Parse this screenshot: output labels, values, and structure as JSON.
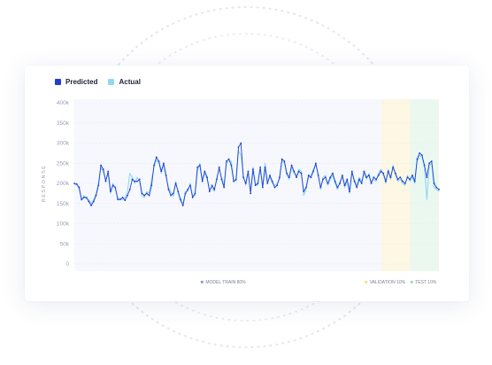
{
  "legend": {
    "predicted_label": "Predicted",
    "actual_label": "Actual"
  },
  "colors": {
    "predicted": "#1f3fd4",
    "actual": "#8fd8f0",
    "train_bg": "#f6f8fd",
    "validation_bg": "#fdf7e3",
    "test_bg": "#ebf8ef",
    "grid": "#e6e9f2"
  },
  "zones": [
    {
      "label": "MODEL TRAIN 80%",
      "start": 0,
      "end": 128,
      "dot": "#8aa0e6"
    },
    {
      "label": "VALIDATION 10%",
      "start": 128,
      "end": 140,
      "dot": "#f3dd9a"
    },
    {
      "label": "TEST 10%",
      "start": 140,
      "end": 152,
      "dot": "#9fe0b5"
    }
  ],
  "chart_data": {
    "type": "line",
    "ylabel": "RESPONSE",
    "ylim": [
      0,
      400000
    ],
    "y_ticks": [
      0,
      50000,
      100000,
      150000,
      200000,
      250000,
      300000,
      350000,
      400000
    ],
    "y_tick_labels": [
      "0",
      "50k",
      "100k",
      "150k",
      "200k",
      "250k",
      "300k",
      "350k",
      "400k"
    ],
    "legend_position": "top-left",
    "grid": true,
    "series": [
      {
        "name": "Predicted",
        "values": [
          200000,
          198000,
          190000,
          160000,
          165000,
          165000,
          155000,
          145000,
          155000,
          170000,
          195000,
          245000,
          235000,
          205000,
          230000,
          180000,
          195000,
          190000,
          160000,
          160000,
          165000,
          158000,
          170000,
          185000,
          210000,
          205000,
          205000,
          210000,
          175000,
          170000,
          175000,
          170000,
          195000,
          245000,
          265000,
          255000,
          230000,
          250000,
          220000,
          185000,
          170000,
          175000,
          200000,
          180000,
          160000,
          145000,
          175000,
          185000,
          195000,
          165000,
          175000,
          240000,
          245000,
          205000,
          230000,
          215000,
          180000,
          195000,
          185000,
          210000,
          240000,
          210000,
          190000,
          255000,
          260000,
          245000,
          205000,
          210000,
          290000,
          300000,
          215000,
          200000,
          230000,
          175000,
          235000,
          195000,
          200000,
          240000,
          190000,
          240000,
          200000,
          220000,
          205000,
          190000,
          195000,
          215000,
          260000,
          255000,
          225000,
          215000,
          245000,
          230000,
          215000,
          230000,
          225000,
          180000,
          190000,
          220000,
          215000,
          230000,
          250000,
          220000,
          190000,
          210000,
          215000,
          200000,
          215000,
          225000,
          205000,
          190000,
          200000,
          220000,
          195000,
          210000,
          180000,
          230000,
          205000,
          190000,
          210000,
          200000,
          230000,
          215000,
          220000,
          200000,
          215000,
          210000,
          220000,
          230000,
          225000,
          205000,
          230000,
          215000,
          240000,
          225000,
          210000,
          215000,
          205000,
          200000,
          215000,
          210000,
          220000,
          205000,
          260000,
          275000,
          270000,
          245000,
          215000,
          250000,
          255000,
          200000,
          190000,
          185000
        ],
        "color": "#1f3fd4"
      },
      {
        "name": "Actual",
        "values": [
          195000,
          200000,
          185000,
          158000,
          170000,
          162000,
          160000,
          150000,
          160000,
          175000,
          200000,
          240000,
          228000,
          210000,
          222000,
          175000,
          200000,
          185000,
          165000,
          162000,
          160000,
          165000,
          180000,
          225000,
          215000,
          200000,
          215000,
          205000,
          170000,
          165000,
          180000,
          175000,
          210000,
          240000,
          258000,
          250000,
          225000,
          245000,
          215000,
          190000,
          178000,
          168000,
          205000,
          175000,
          155000,
          150000,
          180000,
          180000,
          200000,
          170000,
          170000,
          230000,
          250000,
          210000,
          225000,
          210000,
          185000,
          190000,
          180000,
          215000,
          235000,
          215000,
          195000,
          250000,
          255000,
          255000,
          210000,
          205000,
          280000,
          270000,
          220000,
          195000,
          225000,
          180000,
          240000,
          200000,
          195000,
          235000,
          195000,
          250000,
          205000,
          215000,
          200000,
          195000,
          200000,
          210000,
          255000,
          250000,
          220000,
          210000,
          240000,
          225000,
          220000,
          235000,
          230000,
          170000,
          185000,
          215000,
          220000,
          235000,
          245000,
          225000,
          185000,
          215000,
          220000,
          195000,
          210000,
          220000,
          200000,
          185000,
          205000,
          215000,
          190000,
          205000,
          175000,
          225000,
          210000,
          195000,
          215000,
          205000,
          225000,
          210000,
          225000,
          205000,
          210000,
          205000,
          225000,
          235000,
          220000,
          200000,
          235000,
          210000,
          245000,
          220000,
          205000,
          210000,
          200000,
          195000,
          220000,
          205000,
          215000,
          200000,
          255000,
          270000,
          265000,
          240000,
          160000,
          245000,
          250000,
          190000,
          185000,
          180000
        ],
        "color": "#8fd8f0"
      }
    ]
  }
}
